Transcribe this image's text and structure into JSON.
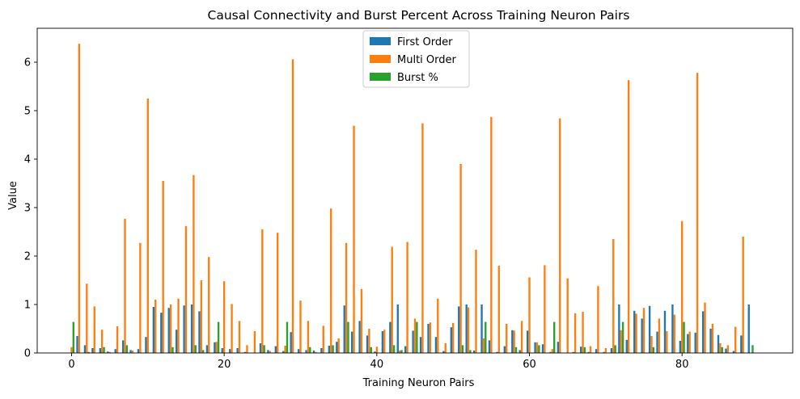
{
  "chart_data": {
    "type": "bar",
    "title": "Causal Connectivity and Burst Percent Across Training Neuron Pairs",
    "xlabel": "Training Neuron Pairs",
    "ylabel": "Value",
    "xlim": [
      -4.5,
      94.5
    ],
    "ylim": [
      0,
      6.7
    ],
    "xticks": [
      0,
      20,
      40,
      60,
      80
    ],
    "yticks": [
      0,
      1,
      2,
      3,
      4,
      5,
      6
    ],
    "grid": false,
    "legend_position": "top-center",
    "x": [
      0,
      1,
      2,
      3,
      4,
      5,
      6,
      7,
      8,
      9,
      10,
      11,
      12,
      13,
      14,
      15,
      16,
      17,
      18,
      19,
      20,
      21,
      22,
      23,
      24,
      25,
      26,
      27,
      28,
      29,
      30,
      31,
      32,
      33,
      34,
      35,
      36,
      37,
      38,
      39,
      40,
      41,
      42,
      43,
      44,
      45,
      46,
      47,
      48,
      49,
      50,
      51,
      52,
      53,
      54,
      55,
      56,
      57,
      58,
      59,
      60,
      61,
      62,
      63,
      64,
      65,
      66,
      67,
      68,
      69,
      70,
      71,
      72,
      73,
      74,
      75,
      76,
      77,
      78,
      79,
      80,
      81,
      82,
      83,
      84,
      85,
      86,
      87,
      88,
      89
    ],
    "series": [
      {
        "name": "First Order",
        "color": "#1f77b4",
        "values": [
          0.0,
          0.35,
          0.16,
          0.1,
          0.1,
          0.03,
          0.08,
          0.26,
          0.06,
          0.08,
          0.33,
          0.95,
          0.83,
          0.93,
          0.48,
          0.98,
          1.0,
          0.86,
          0.16,
          0.22,
          0.1,
          0.08,
          0.1,
          0.02,
          0.0,
          0.2,
          0.06,
          0.14,
          0.04,
          0.43,
          0.08,
          0.06,
          0.05,
          0.1,
          0.15,
          0.23,
          0.98,
          0.44,
          0.66,
          0.36,
          0.03,
          0.45,
          0.64,
          1.0,
          0.14,
          0.46,
          0.33,
          0.6,
          0.33,
          0.04,
          0.53,
          0.96,
          1.0,
          0.05,
          1.0,
          0.26,
          0.02,
          0.14,
          0.47,
          0.06,
          0.46,
          0.22,
          0.18,
          0.02,
          0.23,
          0.0,
          0.02,
          0.13,
          0.02,
          0.08,
          0.02,
          0.1,
          1.0,
          0.27,
          0.87,
          0.71,
          0.97,
          0.44,
          0.87,
          1.0,
          0.25,
          0.39,
          0.42,
          0.86,
          0.5,
          0.37,
          0.09,
          0.04,
          0.36,
          1.0
        ]
      },
      {
        "name": "Multi Order",
        "color": "#ff7f0e",
        "values": [
          0.12,
          6.38,
          1.43,
          0.96,
          0.48,
          0.02,
          0.55,
          2.77,
          0.05,
          2.27,
          5.25,
          1.1,
          3.55,
          1.0,
          1.12,
          2.62,
          3.67,
          1.5,
          1.98,
          0.23,
          1.48,
          1.01,
          0.66,
          0.16,
          0.45,
          2.55,
          0.04,
          2.48,
          0.15,
          6.06,
          1.08,
          0.66,
          0.02,
          0.56,
          2.98,
          0.3,
          2.27,
          4.69,
          1.32,
          0.5,
          0.13,
          0.48,
          2.19,
          0.05,
          2.29,
          0.71,
          4.74,
          0.63,
          1.12,
          0.2,
          0.62,
          3.9,
          0.94,
          2.13,
          0.3,
          4.87,
          1.8,
          0.6,
          0.46,
          0.66,
          1.56,
          0.22,
          1.81,
          0.08,
          4.84,
          1.54,
          0.82,
          0.85,
          0.14,
          1.38,
          0.1,
          2.35,
          0.47,
          5.63,
          0.81,
          0.93,
          0.35,
          0.71,
          0.45,
          0.79,
          2.72,
          0.44,
          5.78,
          1.04,
          0.6,
          0.2,
          0.16,
          0.54,
          2.4,
          0.0
        ]
      },
      {
        "name": "Burst %",
        "color": "#2ca02c",
        "values": [
          0.64,
          0.0,
          0.02,
          0.0,
          0.12,
          0.0,
          0.0,
          0.16,
          0.0,
          0.0,
          0.0,
          0.0,
          0.0,
          0.12,
          0.0,
          0.0,
          0.16,
          0.06,
          0.0,
          0.64,
          0.0,
          0.0,
          0.0,
          0.0,
          0.0,
          0.16,
          0.0,
          0.0,
          0.64,
          0.0,
          0.0,
          0.12,
          0.0,
          0.0,
          0.16,
          0.0,
          0.64,
          0.0,
          0.0,
          0.12,
          0.0,
          0.0,
          0.16,
          0.06,
          0.0,
          0.64,
          0.0,
          0.0,
          0.0,
          0.0,
          0.0,
          0.16,
          0.06,
          0.0,
          0.64,
          0.0,
          0.0,
          0.0,
          0.12,
          0.0,
          0.0,
          0.16,
          0.0,
          0.64,
          0.0,
          0.0,
          0.0,
          0.12,
          0.0,
          0.0,
          0.0,
          0.16,
          0.64,
          0.0,
          0.0,
          0.0,
          0.12,
          0.0,
          0.0,
          0.0,
          0.64,
          0.0,
          0.0,
          0.0,
          0.0,
          0.12,
          0.0,
          0.0,
          0.0,
          0.16
        ]
      }
    ]
  }
}
